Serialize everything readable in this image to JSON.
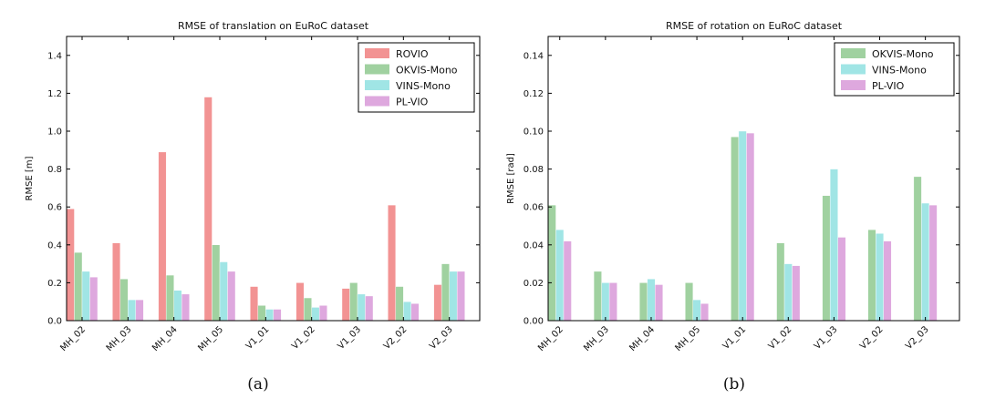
{
  "chart_data": [
    {
      "type": "bar",
      "title": "RMSE of translation on EuRoC dataset",
      "ylabel": "RMSE [m]",
      "xlabel": "",
      "ylim": [
        0,
        1.5
      ],
      "yticks": [
        "0.0",
        "0.2",
        "0.4",
        "0.6",
        "0.8",
        "1.0",
        "1.2",
        "1.4"
      ],
      "categories": [
        "MH_02",
        "MH_03",
        "MH_04",
        "MH_05",
        "V1_01",
        "V1_02",
        "V1_03",
        "V2_02",
        "V2_03"
      ],
      "grid": false,
      "legend": "top-right",
      "series": [
        {
          "name": "ROVIO",
          "color": "#f08080",
          "values": [
            0.59,
            0.41,
            0.89,
            1.18,
            0.18,
            0.2,
            0.17,
            0.61,
            0.19
          ]
        },
        {
          "name": "OKVIS-Mono",
          "color": "#8fc98f",
          "values": [
            0.36,
            0.22,
            0.24,
            0.4,
            0.08,
            0.12,
            0.2,
            0.18,
            0.3
          ]
        },
        {
          "name": "VINS-Mono",
          "color": "#8fe0e0",
          "values": [
            0.26,
            0.11,
            0.16,
            0.31,
            0.06,
            0.07,
            0.14,
            0.1,
            0.26
          ]
        },
        {
          "name": "PL-VIO",
          "color": "#d899d8",
          "values": [
            0.23,
            0.11,
            0.14,
            0.26,
            0.06,
            0.08,
            0.13,
            0.09,
            0.26
          ]
        }
      ],
      "caption": "(a)"
    },
    {
      "type": "bar",
      "title": "RMSE of rotation on EuRoC dataset",
      "ylabel": "RMSE [rad]",
      "xlabel": "",
      "ylim": [
        0,
        0.15
      ],
      "yticks": [
        "0.00",
        "0.02",
        "0.04",
        "0.06",
        "0.08",
        "0.10",
        "0.12",
        "0.14"
      ],
      "categories": [
        "MH_02",
        "MH_03",
        "MH_04",
        "MH_05",
        "V1_01",
        "V1_02",
        "V1_03",
        "V2_02",
        "V2_03"
      ],
      "grid": false,
      "legend": "top-right",
      "series": [
        {
          "name": "OKVIS-Mono",
          "color": "#8fc98f",
          "values": [
            0.061,
            0.026,
            0.02,
            0.02,
            0.097,
            0.041,
            0.066,
            0.048,
            0.076
          ]
        },
        {
          "name": "VINS-Mono",
          "color": "#8fe0e0",
          "values": [
            0.048,
            0.02,
            0.022,
            0.011,
            0.1,
            0.03,
            0.08,
            0.046,
            0.062
          ]
        },
        {
          "name": "PL-VIO",
          "color": "#d899d8",
          "values": [
            0.042,
            0.02,
            0.019,
            0.009,
            0.099,
            0.029,
            0.044,
            0.042,
            0.061
          ]
        }
      ],
      "caption": "(b)"
    }
  ]
}
